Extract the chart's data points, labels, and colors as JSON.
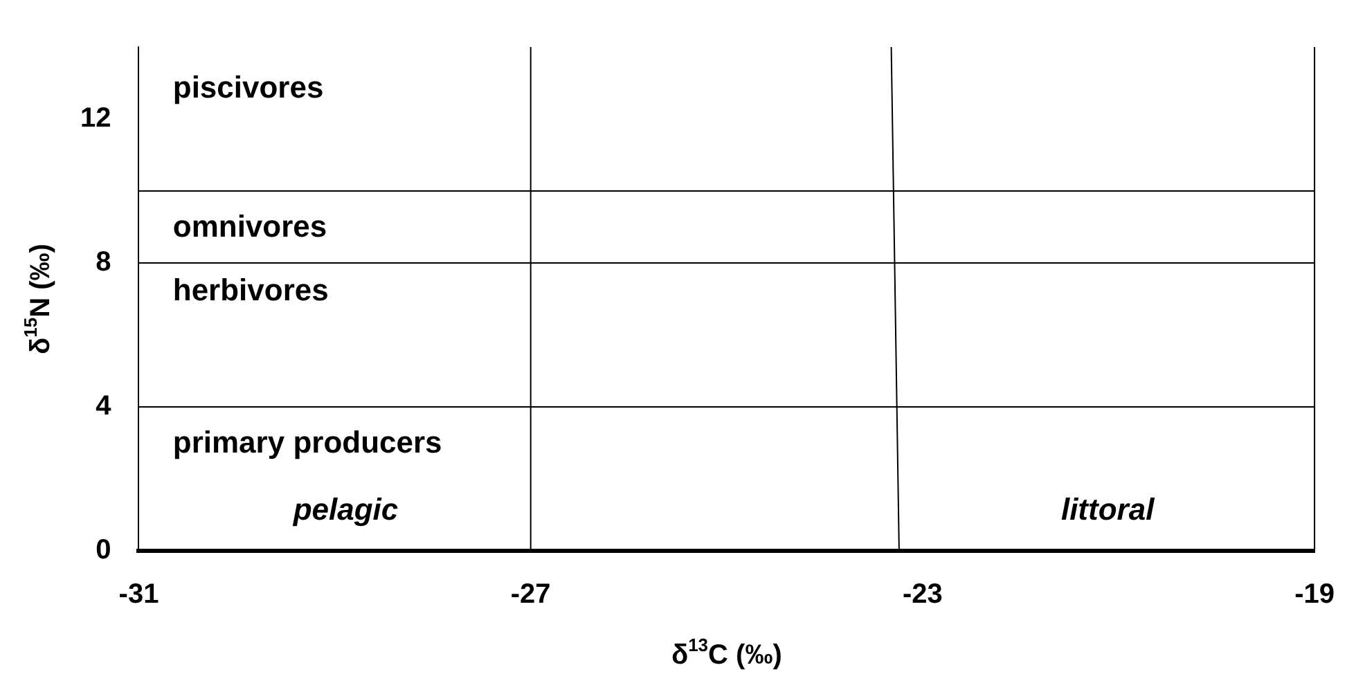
{
  "chart_data": {
    "type": "scatter",
    "xlabel": "δ$^{13}$C (‰)",
    "ylabel": "δ$^{15}$N (‰)",
    "xlim": [
      -31,
      -19
    ],
    "xticks": [
      -31,
      -27,
      -23,
      -19
    ],
    "ylim": [
      0,
      14
    ],
    "yticks": [
      0,
      4,
      8,
      12
    ],
    "grid": false,
    "legend": false,
    "series": [
      {
        "type": "line",
        "color": "#000000",
        "x": [
          -23.32,
          -23.24
        ],
        "values": [
          14,
          0
        ]
      }
    ],
    "ref_lines": [
      {
        "axis": "y",
        "value": 4,
        "color": "#000000"
      },
      {
        "axis": "y",
        "value": 8,
        "color": "#000000"
      },
      {
        "axis": "y",
        "value": 10,
        "color": "#000000"
      },
      {
        "axis": "x",
        "value": -27,
        "color": "#000000"
      }
    ],
    "annotations": [
      "piscivores",
      "omnivores",
      "herbivores",
      "primary producers",
      "pelagic",
      "littoral"
    ]
  }
}
